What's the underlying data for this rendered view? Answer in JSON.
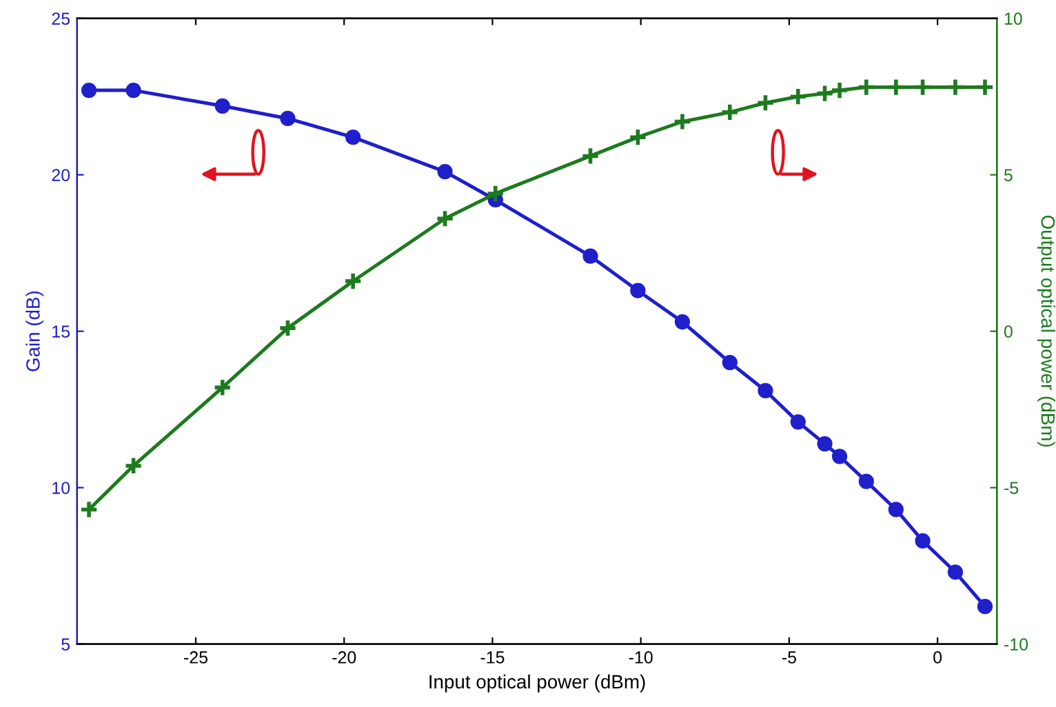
{
  "chart_data": {
    "type": "line",
    "xlabel": "Input optical power (dBm)",
    "ylabel": "Gain (dB)",
    "y2label": "Output optical power (dBm)",
    "x": [
      -28.6,
      -27.1,
      -24.1,
      -21.9,
      -19.7,
      -16.6,
      -14.9,
      -11.7,
      -10.1,
      -8.6,
      -7.0,
      -5.8,
      -4.7,
      -3.8,
      -3.3,
      -2.4,
      -1.4,
      -0.5,
      0.6,
      1.6
    ],
    "series": [
      {
        "color": "#1f1fcc",
        "marker": "circle",
        "values": [
          22.7,
          22.7,
          22.2,
          21.8,
          21.2,
          20.1,
          19.2,
          17.4,
          16.3,
          15.3,
          14.0,
          13.1,
          12.1,
          11.4,
          11.0,
          10.2,
          9.3,
          8.3,
          7.3,
          6.2
        ]
      },
      {
        "color": "#1e7a1e",
        "marker": "cross",
        "axis": "y2",
        "values": [
          -5.7,
          -4.3,
          -1.8,
          0.1,
          1.6,
          3.6,
          4.4,
          5.6,
          6.2,
          6.7,
          7.0,
          7.3,
          7.5,
          7.6,
          7.7,
          7.8,
          7.8,
          7.8,
          7.8,
          7.8
        ]
      }
    ],
    "xlim": [
      -29,
      2
    ],
    "xticks": [
      -25,
      -20,
      -15,
      -10,
      -5,
      0
    ],
    "ylim": [
      5,
      25
    ],
    "yticks": [
      5,
      10,
      15,
      20,
      25
    ],
    "y2lim": [
      -10,
      10
    ],
    "y2ticks": [
      -10,
      -5,
      0,
      5,
      10
    ],
    "grid": false,
    "legend": false,
    "line_style": "solid"
  }
}
